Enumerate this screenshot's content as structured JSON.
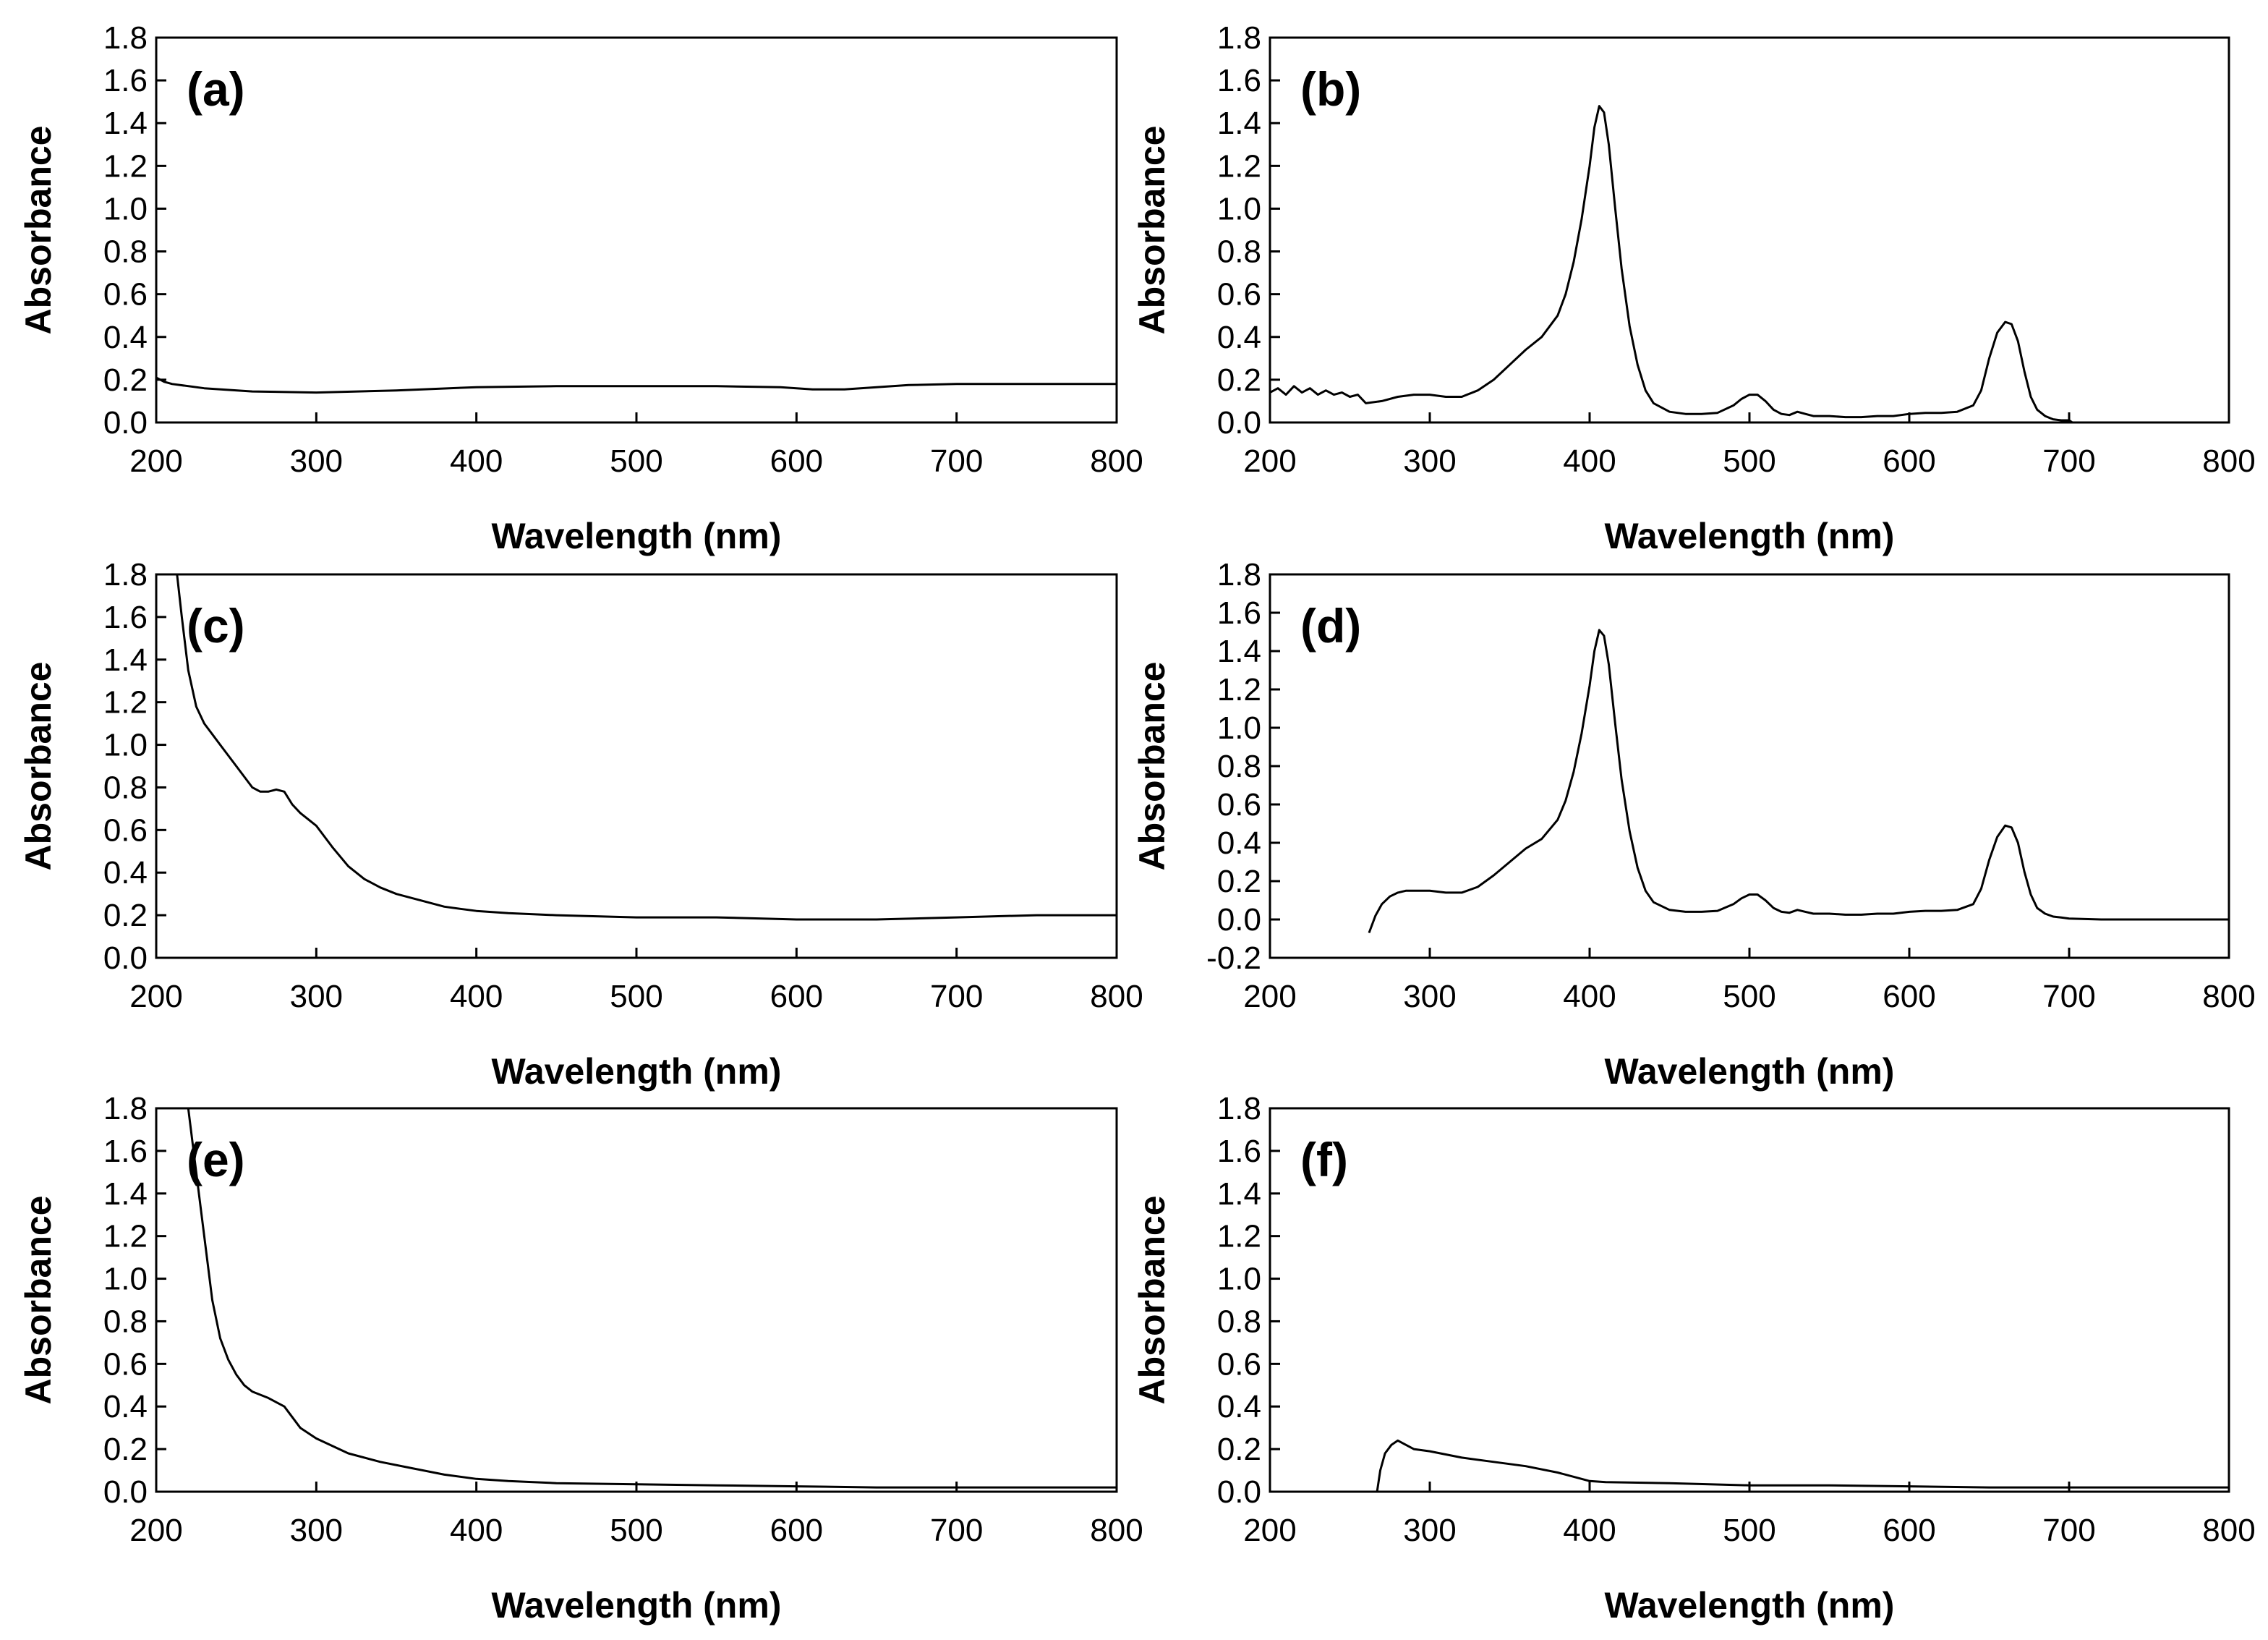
{
  "chart_data": [
    {
      "type": "line",
      "panel_label": "(a)",
      "xlabel": "Wavelength (nm)",
      "ylabel": "Absorbance",
      "xlim": [
        200,
        800
      ],
      "ylim": [
        0.0,
        1.8
      ],
      "xticks": [
        "200",
        "300",
        "400",
        "500",
        "600",
        "700",
        "800"
      ],
      "yticks": [
        "0.0",
        "0.2",
        "0.4",
        "0.6",
        "0.8",
        "1.0",
        "1.2",
        "1.4",
        "1.6",
        "1.8"
      ],
      "series": [
        {
          "name": "a",
          "x": [
            200,
            205,
            210,
            230,
            260,
            300,
            350,
            400,
            450,
            500,
            550,
            590,
            610,
            630,
            650,
            670,
            700,
            750,
            800
          ],
          "y": [
            0.21,
            0.19,
            0.18,
            0.16,
            0.145,
            0.14,
            0.15,
            0.165,
            0.17,
            0.17,
            0.17,
            0.165,
            0.155,
            0.155,
            0.165,
            0.175,
            0.18,
            0.18,
            0.18
          ]
        }
      ]
    },
    {
      "type": "line",
      "panel_label": "(b)",
      "xlabel": "Wavelength (nm)",
      "ylabel": "Absorbance",
      "xlim": [
        200,
        800
      ],
      "ylim": [
        0.0,
        1.8
      ],
      "xticks": [
        "200",
        "300",
        "400",
        "500",
        "600",
        "700",
        "800"
      ],
      "yticks": [
        "0.0",
        "0.2",
        "0.4",
        "0.6",
        "0.8",
        "1.0",
        "1.2",
        "1.4",
        "1.6",
        "1.8"
      ],
      "series": [
        {
          "name": "b",
          "x": [
            200,
            205,
            210,
            215,
            220,
            225,
            230,
            235,
            240,
            245,
            250,
            255,
            260,
            270,
            280,
            290,
            300,
            310,
            320,
            330,
            340,
            350,
            360,
            370,
            380,
            385,
            390,
            395,
            400,
            403,
            406,
            409,
            412,
            416,
            420,
            425,
            430,
            435,
            440,
            450,
            460,
            470,
            480,
            490,
            495,
            500,
            505,
            510,
            515,
            520,
            525,
            530,
            535,
            540,
            550,
            560,
            570,
            580,
            590,
            600,
            610,
            620,
            630,
            640,
            645,
            650,
            655,
            660,
            664,
            668,
            672,
            676,
            680,
            685,
            690,
            695,
            700,
            702,
            705
          ],
          "y": [
            0.14,
            0.16,
            0.13,
            0.17,
            0.14,
            0.16,
            0.13,
            0.15,
            0.13,
            0.14,
            0.12,
            0.13,
            0.09,
            0.1,
            0.12,
            0.13,
            0.13,
            0.12,
            0.12,
            0.15,
            0.2,
            0.27,
            0.34,
            0.4,
            0.5,
            0.6,
            0.75,
            0.95,
            1.2,
            1.38,
            1.48,
            1.45,
            1.3,
            1.0,
            0.72,
            0.45,
            0.27,
            0.15,
            0.09,
            0.05,
            0.04,
            0.04,
            0.045,
            0.08,
            0.11,
            0.13,
            0.13,
            0.1,
            0.06,
            0.04,
            0.035,
            0.05,
            0.04,
            0.03,
            0.03,
            0.025,
            0.025,
            0.03,
            0.03,
            0.04,
            0.045,
            0.045,
            0.05,
            0.08,
            0.15,
            0.3,
            0.42,
            0.47,
            0.46,
            0.38,
            0.24,
            0.12,
            0.06,
            0.03,
            0.015,
            0.01,
            0.01,
            0.0,
            0.0
          ]
        }
      ]
    },
    {
      "type": "line",
      "panel_label": "(c)",
      "xlabel": "Wavelength (nm)",
      "ylabel": "Absorbance",
      "xlim": [
        200,
        800
      ],
      "ylim": [
        0.0,
        1.8
      ],
      "xticks": [
        "200",
        "300",
        "400",
        "500",
        "600",
        "700",
        "800"
      ],
      "yticks": [
        "0.0",
        "0.2",
        "0.4",
        "0.6",
        "0.8",
        "1.0",
        "1.2",
        "1.4",
        "1.6",
        "1.8"
      ],
      "series": [
        {
          "name": "c",
          "x": [
            213,
            216,
            220,
            225,
            230,
            240,
            250,
            260,
            265,
            270,
            275,
            280,
            285,
            290,
            300,
            310,
            320,
            330,
            340,
            350,
            360,
            370,
            380,
            390,
            400,
            420,
            450,
            500,
            550,
            600,
            650,
            700,
            750,
            800
          ],
          "y": [
            1.8,
            1.6,
            1.35,
            1.18,
            1.1,
            1.0,
            0.9,
            0.8,
            0.78,
            0.78,
            0.79,
            0.78,
            0.72,
            0.68,
            0.62,
            0.52,
            0.43,
            0.37,
            0.33,
            0.3,
            0.28,
            0.26,
            0.24,
            0.23,
            0.22,
            0.21,
            0.2,
            0.19,
            0.19,
            0.18,
            0.18,
            0.19,
            0.2,
            0.2
          ]
        }
      ]
    },
    {
      "type": "line",
      "panel_label": "(d)",
      "xlabel": "Wavelength (nm)",
      "ylabel": "Absorbance",
      "xlim": [
        200,
        800
      ],
      "ylim": [
        -0.2,
        1.8
      ],
      "xticks": [
        "200",
        "300",
        "400",
        "500",
        "600",
        "700",
        "800"
      ],
      "yticks": [
        "-0.2",
        "0.0",
        "0.2",
        "0.4",
        "0.6",
        "0.8",
        "1.0",
        "1.2",
        "1.4",
        "1.6",
        "1.8"
      ],
      "series": [
        {
          "name": "d",
          "x": [
            262,
            266,
            270,
            275,
            280,
            285,
            290,
            300,
            310,
            320,
            330,
            340,
            350,
            360,
            370,
            380,
            385,
            390,
            395,
            400,
            403,
            406,
            409,
            412,
            416,
            420,
            425,
            430,
            435,
            440,
            450,
            460,
            470,
            480,
            490,
            495,
            500,
            505,
            510,
            515,
            520,
            525,
            530,
            535,
            540,
            550,
            560,
            570,
            580,
            590,
            600,
            610,
            620,
            630,
            640,
            645,
            650,
            655,
            660,
            664,
            668,
            672,
            676,
            680,
            685,
            690,
            695,
            700,
            720,
            750,
            800
          ],
          "y": [
            -0.07,
            0.02,
            0.08,
            0.12,
            0.14,
            0.15,
            0.15,
            0.15,
            0.14,
            0.14,
            0.17,
            0.23,
            0.3,
            0.37,
            0.42,
            0.52,
            0.62,
            0.77,
            0.97,
            1.22,
            1.4,
            1.51,
            1.48,
            1.33,
            1.02,
            0.73,
            0.46,
            0.27,
            0.15,
            0.09,
            0.05,
            0.04,
            0.04,
            0.045,
            0.08,
            0.11,
            0.13,
            0.13,
            0.1,
            0.06,
            0.04,
            0.035,
            0.05,
            0.04,
            0.03,
            0.03,
            0.025,
            0.025,
            0.03,
            0.03,
            0.04,
            0.045,
            0.045,
            0.05,
            0.08,
            0.16,
            0.31,
            0.43,
            0.49,
            0.48,
            0.4,
            0.25,
            0.13,
            0.06,
            0.03,
            0.015,
            0.01,
            0.005,
            0.0,
            0.0,
            0.0
          ]
        }
      ]
    },
    {
      "type": "line",
      "panel_label": "(e)",
      "xlabel": "Wavelength (nm)",
      "ylabel": "Absorbance",
      "xlim": [
        200,
        800
      ],
      "ylim": [
        0.0,
        1.8
      ],
      "xticks": [
        "200",
        "300",
        "400",
        "500",
        "600",
        "700",
        "800"
      ],
      "yticks": [
        "0.0",
        "0.2",
        "0.4",
        "0.6",
        "0.8",
        "1.0",
        "1.2",
        "1.4",
        "1.6",
        "1.8"
      ],
      "series": [
        {
          "name": "e",
          "x": [
            220,
            225,
            230,
            235,
            240,
            245,
            250,
            255,
            260,
            270,
            280,
            290,
            300,
            320,
            340,
            360,
            380,
            400,
            420,
            450,
            500,
            550,
            600,
            650,
            700,
            750,
            800
          ],
          "y": [
            1.8,
            1.5,
            1.2,
            0.9,
            0.72,
            0.62,
            0.55,
            0.5,
            0.47,
            0.44,
            0.4,
            0.3,
            0.25,
            0.18,
            0.14,
            0.11,
            0.08,
            0.06,
            0.05,
            0.04,
            0.035,
            0.03,
            0.025,
            0.02,
            0.02,
            0.02,
            0.02
          ]
        }
      ]
    },
    {
      "type": "line",
      "panel_label": "(f)",
      "xlabel": "Wavelength (nm)",
      "ylabel": "Absorbance",
      "xlim": [
        200,
        800
      ],
      "ylim": [
        0.0,
        1.8
      ],
      "xticks": [
        "200",
        "300",
        "400",
        "500",
        "600",
        "700",
        "800"
      ],
      "yticks": [
        "0.0",
        "0.2",
        "0.4",
        "0.6",
        "0.8",
        "1.0",
        "1.2",
        "1.4",
        "1.6",
        "1.8"
      ],
      "series": [
        {
          "name": "f",
          "x": [
            267,
            269,
            272,
            276,
            280,
            285,
            290,
            300,
            320,
            340,
            360,
            380,
            395,
            400,
            410,
            450,
            500,
            550,
            600,
            650,
            700,
            750,
            800
          ],
          "y": [
            0.0,
            0.1,
            0.18,
            0.22,
            0.24,
            0.22,
            0.2,
            0.19,
            0.16,
            0.14,
            0.12,
            0.09,
            0.06,
            0.05,
            0.045,
            0.04,
            0.03,
            0.03,
            0.025,
            0.02,
            0.02,
            0.02,
            0.02
          ]
        }
      ]
    }
  ]
}
